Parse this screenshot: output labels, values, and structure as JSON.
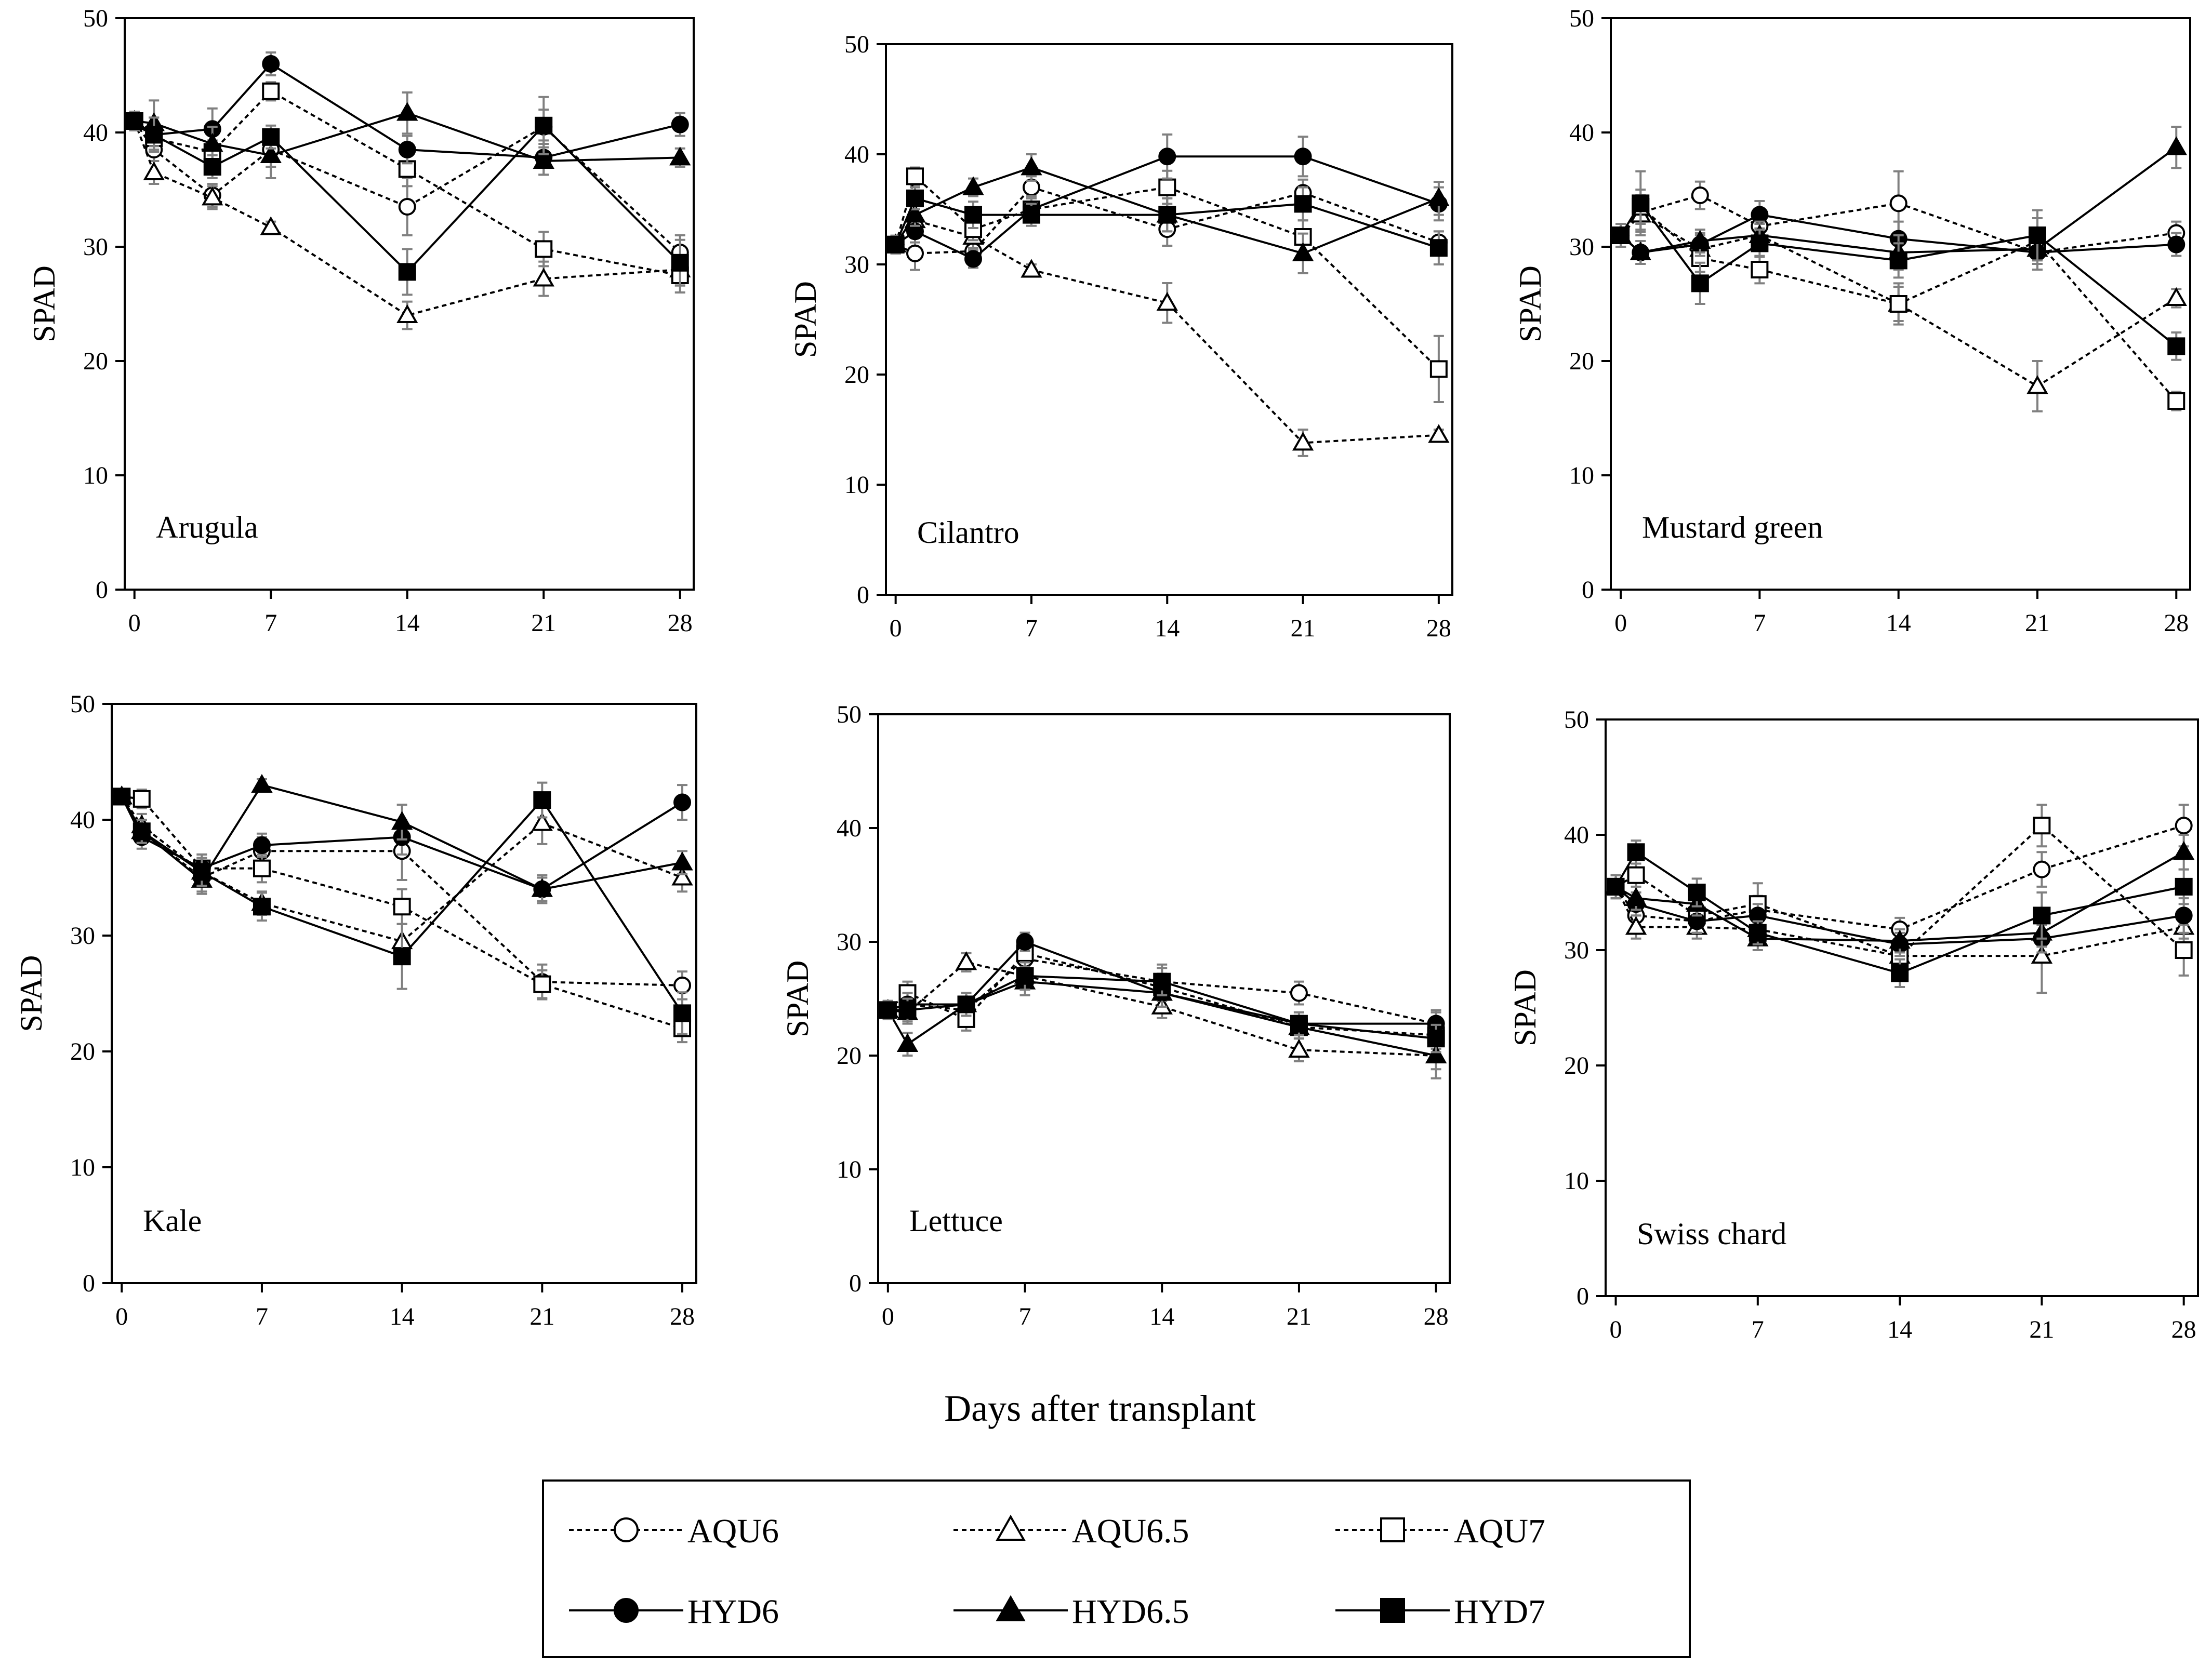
{
  "chart_data": {
    "type": "line",
    "xlabel": "Days after transplant",
    "ylabel": "SPAD",
    "xticks": [
      0,
      7,
      14,
      21,
      28
    ],
    "yticks": [
      0,
      10,
      20,
      30,
      40,
      50
    ],
    "xlim": [
      -0.5,
      28.7
    ],
    "ylim": [
      0,
      50
    ],
    "x": [
      0,
      1,
      4,
      7,
      14,
      21,
      28
    ],
    "series_styles": [
      {
        "name": "AQU6",
        "marker": "circle",
        "filled": false,
        "dashed": true
      },
      {
        "name": "AQU6.5",
        "marker": "triangle",
        "filled": false,
        "dashed": true
      },
      {
        "name": "AQU7",
        "marker": "square",
        "filled": false,
        "dashed": true
      },
      {
        "name": "HYD6",
        "marker": "circle",
        "filled": true,
        "dashed": false
      },
      {
        "name": "HYD6.5",
        "marker": "triangle",
        "filled": true,
        "dashed": false
      },
      {
        "name": "HYD7",
        "marker": "square",
        "filled": true,
        "dashed": false
      }
    ],
    "panels": [
      {
        "title": "Arugula",
        "series": [
          {
            "name": "AQU6",
            "values": [
              41,
              38.5,
              34.5,
              38.5,
              33.5,
              40.5,
              29.5
            ],
            "errors": [
              0.8,
              1.0,
              1.0,
              1.5,
              2.5,
              1.5,
              1.5
            ]
          },
          {
            "name": "AQU6.5",
            "values": [
              41,
              36.5,
              34.3,
              31.7,
              24.0,
              27.2,
              28.0
            ],
            "errors": [
              0.8,
              1.0,
              1.0,
              0.5,
              1.2,
              1.5,
              1.2
            ]
          },
          {
            "name": "AQU7",
            "values": [
              41,
              39.5,
              38.3,
              43.6,
              36.8,
              29.8,
              27.5
            ],
            "errors": [
              0.8,
              1.0,
              1.0,
              0.8,
              1.5,
              1.5,
              1.5
            ]
          },
          {
            "name": "HYD6",
            "values": [
              41,
              39.8,
              40.3,
              46.0,
              38.5,
              37.8,
              40.7
            ],
            "errors": [
              0.8,
              1.5,
              1.8,
              1.0,
              1.2,
              1.5,
              1.0
            ]
          },
          {
            "name": "HYD6.5",
            "values": [
              41,
              40.8,
              39.0,
              38.0,
              41.7,
              37.5,
              37.8
            ],
            "errors": [
              0.8,
              2.0,
              1.5,
              2.0,
              1.8,
              1.2,
              0.8
            ]
          },
          {
            "name": "HYD7",
            "values": [
              41,
              39.8,
              37.0,
              39.6,
              27.8,
              40.6,
              28.6
            ],
            "errors": [
              0.8,
              1.5,
              1.0,
              1.0,
              2.0,
              2.5,
              2.0
            ]
          }
        ]
      },
      {
        "title": "Cilantro",
        "series": [
          {
            "name": "AQU6",
            "values": [
              31.8,
              31.0,
              31.2,
              37.0,
              33.2,
              36.5,
              32.0
            ],
            "errors": [
              0.8,
              1.5,
              1.0,
              1.0,
              1.5,
              1.2,
              1.0
            ]
          },
          {
            "name": "AQU6.5",
            "values": [
              31.8,
              34.0,
              32.5,
              29.5,
              26.5,
              13.8,
              14.5
            ],
            "errors": [
              0.8,
              1.0,
              1.0,
              0.5,
              1.8,
              1.2,
              0.5
            ]
          },
          {
            "name": "AQU7",
            "values": [
              31.8,
              38.0,
              33.2,
              35.0,
              37.0,
              32.5,
              20.5
            ],
            "errors": [
              0.8,
              0.8,
              1.0,
              1.2,
              1.5,
              1.5,
              3.0
            ]
          },
          {
            "name": "HYD6",
            "values": [
              31.8,
              33.0,
              30.5,
              35.0,
              39.8,
              39.8,
              35.5
            ],
            "errors": [
              0.8,
              1.0,
              0.8,
              1.0,
              2.0,
              1.8,
              1.5
            ]
          },
          {
            "name": "HYD6.5",
            "values": [
              31.8,
              34.5,
              37.0,
              38.8,
              34.5,
              31.0,
              36.0
            ],
            "errors": [
              0.8,
              1.0,
              0.8,
              1.2,
              1.5,
              1.8,
              1.5
            ]
          },
          {
            "name": "HYD7",
            "values": [
              31.8,
              36.0,
              34.5,
              34.5,
              34.5,
              35.5,
              31.5
            ],
            "errors": [
              0.8,
              1.0,
              1.2,
              1.0,
              1.5,
              1.5,
              1.5
            ]
          }
        ]
      },
      {
        "title": "Mustard green",
        "series": [
          {
            "name": "AQU6",
            "values": [
              31,
              33.0,
              34.5,
              31.8,
              33.8,
              29.5,
              31.2
            ],
            "errors": [
              1.0,
              1.5,
              1.2,
              1.2,
              2.8,
              1.5,
              1.0
            ]
          },
          {
            "name": "AQU6.5",
            "values": [
              31,
              32.8,
              29.8,
              31.0,
              25.0,
              17.8,
              25.5
            ],
            "errors": [
              1.0,
              1.5,
              1.2,
              1.0,
              1.8,
              2.2,
              0.8
            ]
          },
          {
            "name": "AQU7",
            "values": [
              31,
              33.5,
              29.0,
              28.0,
              25.0,
              30.5,
              16.5
            ],
            "errors": [
              1.0,
              1.5,
              1.2,
              1.2,
              1.5,
              2.0,
              0.8
            ]
          },
          {
            "name": "HYD6",
            "values": [
              31,
              29.5,
              30.2,
              32.8,
              30.7,
              29.5,
              30.2
            ],
            "errors": [
              1.0,
              1.0,
              1.0,
              1.2,
              1.5,
              1.5,
              1.0
            ]
          },
          {
            "name": "HYD6.5",
            "values": [
              31,
              29.5,
              30.5,
              31.0,
              29.5,
              29.8,
              38.7
            ],
            "errors": [
              1.0,
              1.0,
              1.0,
              1.2,
              1.5,
              1.8,
              1.8
            ]
          },
          {
            "name": "HYD7",
            "values": [
              31,
              33.8,
              26.8,
              30.3,
              28.8,
              31.0,
              21.3
            ],
            "errors": [
              1.0,
              2.8,
              1.8,
              1.2,
              1.5,
              2.2,
              1.2
            ]
          }
        ]
      },
      {
        "title": "Kale",
        "series": [
          {
            "name": "AQU6",
            "values": [
              42,
              39.0,
              35.0,
              37.3,
              37.3,
              26.0,
              25.7
            ],
            "errors": [
              0.5,
              1.0,
              1.2,
              1.2,
              2.5,
              1.5,
              1.2
            ]
          },
          {
            "name": "AQU6.5",
            "values": [
              42,
              39.5,
              35.5,
              32.8,
              29.5,
              39.7,
              35.0
            ],
            "errors": [
              0.5,
              1.0,
              1.2,
              1.0,
              1.5,
              1.8,
              1.2
            ]
          },
          {
            "name": "AQU7",
            "values": [
              42,
              41.8,
              35.8,
              35.8,
              32.5,
              25.8,
              22.0
            ],
            "errors": [
              0.5,
              0.8,
              1.2,
              1.2,
              1.5,
              1.2,
              1.2
            ]
          },
          {
            "name": "HYD6",
            "values": [
              42,
              38.5,
              35.8,
              37.8,
              38.5,
              34.0,
              41.5
            ],
            "errors": [
              0.5,
              1.0,
              1.2,
              1.0,
              1.5,
              1.2,
              1.5
            ]
          },
          {
            "name": "HYD6.5",
            "values": [
              42,
              39.0,
              34.8,
              43.0,
              39.8,
              34.0,
              36.3
            ],
            "errors": [
              0.5,
              1.0,
              1.2,
              0.5,
              1.5,
              1.0,
              1.0
            ]
          },
          {
            "name": "HYD7",
            "values": [
              42,
              39.0,
              35.5,
              32.5,
              28.2,
              41.7,
              23.3
            ],
            "errors": [
              0.5,
              1.0,
              1.2,
              1.2,
              2.8,
              1.5,
              1.8
            ]
          }
        ]
      },
      {
        "title": "Lettuce",
        "series": [
          {
            "name": "AQU6",
            "values": [
              24,
              24.5,
              24.0,
              28.5,
              26.5,
              25.5,
              22.8
            ],
            "errors": [
              0.8,
              1.0,
              1.0,
              1.2,
              1.5,
              1.0,
              1.0
            ]
          },
          {
            "name": "AQU6.5",
            "values": [
              24,
              23.8,
              28.2,
              27.0,
              24.3,
              20.5,
              20.0
            ],
            "errors": [
              0.8,
              1.0,
              0.8,
              1.2,
              1.0,
              1.0,
              1.2
            ]
          },
          {
            "name": "AQU7",
            "values": [
              24,
              25.5,
              23.2,
              29.0,
              26.0,
              22.5,
              21.8
            ],
            "errors": [
              0.8,
              1.0,
              1.0,
              1.2,
              1.2,
              1.0,
              1.2
            ]
          },
          {
            "name": "HYD6",
            "values": [
              24,
              24.5,
              24.5,
              30.0,
              25.5,
              22.8,
              22.8
            ],
            "errors": [
              0.8,
              1.0,
              1.0,
              0.8,
              1.2,
              1.0,
              1.2
            ]
          },
          {
            "name": "HYD6.5",
            "values": [
              24,
              21.0,
              24.5,
              26.5,
              25.5,
              22.5,
              20.0
            ],
            "errors": [
              0.8,
              1.0,
              1.0,
              1.2,
              1.2,
              1.0,
              2.0
            ]
          },
          {
            "name": "HYD7",
            "values": [
              24,
              24.0,
              24.5,
              27.0,
              26.5,
              22.8,
              21.5
            ],
            "errors": [
              0.8,
              1.0,
              1.0,
              1.2,
              1.2,
              1.0,
              1.2
            ]
          }
        ]
      },
      {
        "title": "Swiss chard",
        "series": [
          {
            "name": "AQU6",
            "values": [
              35.5,
              33.0,
              32.5,
              33.5,
              31.8,
              37.0,
              40.8
            ],
            "errors": [
              1.0,
              1.0,
              1.0,
              1.2,
              1.0,
              1.5,
              1.8
            ]
          },
          {
            "name": "AQU6.5",
            "values": [
              35.5,
              32.0,
              32.0,
              31.8,
              29.5,
              29.5,
              32.0
            ],
            "errors": [
              1.0,
              1.0,
              1.0,
              1.0,
              1.2,
              3.2,
              1.0
            ]
          },
          {
            "name": "AQU7",
            "values": [
              35.5,
              36.5,
              33.0,
              34.0,
              29.5,
              40.8,
              30.0
            ],
            "errors": [
              1.0,
              1.5,
              1.5,
              1.8,
              1.2,
              1.8,
              2.2
            ]
          },
          {
            "name": "HYD6",
            "values": [
              35.5,
              34.0,
              32.5,
              33.0,
              30.5,
              31.0,
              33.0
            ],
            "errors": [
              1.0,
              1.0,
              1.0,
              1.0,
              1.0,
              1.2,
              1.5
            ]
          },
          {
            "name": "HYD6.5",
            "values": [
              35.5,
              34.5,
              34.0,
              31.0,
              30.8,
              31.5,
              38.5
            ],
            "errors": [
              1.0,
              1.0,
              1.0,
              1.0,
              1.0,
              1.2,
              1.5
            ]
          },
          {
            "name": "HYD7",
            "values": [
              35.5,
              38.5,
              35.0,
              31.5,
              28.0,
              33.0,
              35.5
            ],
            "errors": [
              1.0,
              1.0,
              1.2,
              1.0,
              1.2,
              2.0,
              1.5
            ]
          }
        ]
      }
    ]
  }
}
